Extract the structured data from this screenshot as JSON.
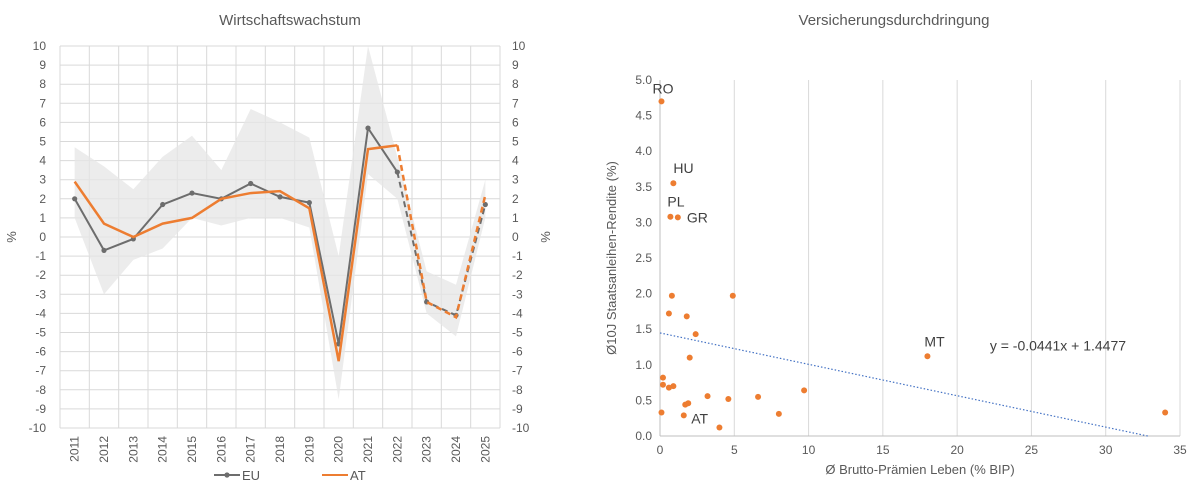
{
  "chart_data": [
    {
      "type": "line",
      "title": "Wirtschaftswachstum",
      "ylabel_left": "%",
      "ylabel_right": "%",
      "ylim": [
        -10,
        10
      ],
      "yticks": [
        10,
        9,
        8,
        7,
        6,
        5,
        4,
        3,
        2,
        1,
        0,
        -1,
        -2,
        -3,
        -4,
        -5,
        -6,
        -7,
        -8,
        -9,
        -10
      ],
      "categories": [
        "2011",
        "2012",
        "2013",
        "2014",
        "2015",
        "2016",
        "2017",
        "2018",
        "2019",
        "2020",
        "2021",
        "2022",
        "2023",
        "2024",
        "2025"
      ],
      "forecast_from": "2022",
      "band": {
        "upper": [
          4.7,
          3.7,
          2.5,
          4.2,
          5.3,
          3.5,
          6.7,
          6.0,
          5.2,
          -1.0,
          10.0,
          4.2,
          -1.8,
          -2.5,
          3.0
        ],
        "lower": [
          1.0,
          -3.0,
          -1.2,
          -0.6,
          1.0,
          0.6,
          1.0,
          1.0,
          0.5,
          -8.5,
          3.3,
          2.0,
          -4.0,
          -5.2,
          1.0
        ],
        "color": "#e6e6e6"
      },
      "series": [
        {
          "name": "EU",
          "color": "#6d6d6d",
          "marker": "circle",
          "values": [
            2.0,
            -0.7,
            -0.1,
            1.7,
            2.3,
            2.0,
            2.8,
            2.1,
            1.8,
            -5.6,
            5.7,
            3.4,
            -3.4,
            -4.1,
            1.7
          ]
        },
        {
          "name": "AT",
          "color": "#ed7d31",
          "marker": "none",
          "values": [
            2.9,
            0.7,
            0.0,
            0.7,
            1.0,
            2.0,
            2.3,
            2.4,
            1.5,
            -6.5,
            4.6,
            4.8,
            -3.4,
            -4.2,
            2.2
          ]
        }
      ],
      "legend": "bottom"
    },
    {
      "type": "scatter",
      "title": "Versicherungsdurchdringung",
      "xlabel": "Ø Brutto-Prämien Leben (% BIP)",
      "ylabel": "Ø10J Staatsanleihen-Rendite (%)",
      "xlim": [
        0,
        35
      ],
      "ylim": [
        0,
        5
      ],
      "xticks": [
        0,
        5,
        10,
        15,
        20,
        25,
        30,
        35
      ],
      "yticks": [
        "0.0",
        "0.5",
        "1.0",
        "1.5",
        "2.0",
        "2.5",
        "3.0",
        "3.5",
        "4.0",
        "4.5",
        "5.0"
      ],
      "grid_x": true,
      "grid_y": false,
      "point_color": "#ed7d31",
      "points": [
        {
          "x": 0.1,
          "y": 4.7,
          "label": "RO"
        },
        {
          "x": 0.9,
          "y": 3.55,
          "label": "HU"
        },
        {
          "x": 0.7,
          "y": 3.08,
          "label": "PL"
        },
        {
          "x": 1.2,
          "y": 3.07,
          "label": "GR"
        },
        {
          "x": 1.7,
          "y": 0.44,
          "label": "AT"
        },
        {
          "x": 18.0,
          "y": 1.12,
          "label": "MT"
        },
        {
          "x": 0.8,
          "y": 1.97,
          "label": ""
        },
        {
          "x": 4.9,
          "y": 1.97,
          "label": ""
        },
        {
          "x": 0.6,
          "y": 1.72,
          "label": ""
        },
        {
          "x": 1.8,
          "y": 1.68,
          "label": ""
        },
        {
          "x": 2.4,
          "y": 1.43,
          "label": ""
        },
        {
          "x": 2.0,
          "y": 1.1,
          "label": ""
        },
        {
          "x": 0.2,
          "y": 0.82,
          "label": ""
        },
        {
          "x": 0.2,
          "y": 0.72,
          "label": ""
        },
        {
          "x": 0.9,
          "y": 0.7,
          "label": ""
        },
        {
          "x": 0.6,
          "y": 0.68,
          "label": ""
        },
        {
          "x": 9.7,
          "y": 0.64,
          "label": ""
        },
        {
          "x": 3.2,
          "y": 0.56,
          "label": ""
        },
        {
          "x": 6.6,
          "y": 0.55,
          "label": ""
        },
        {
          "x": 4.6,
          "y": 0.52,
          "label": ""
        },
        {
          "x": 1.9,
          "y": 0.46,
          "label": ""
        },
        {
          "x": 0.1,
          "y": 0.33,
          "label": ""
        },
        {
          "x": 1.6,
          "y": 0.29,
          "label": ""
        },
        {
          "x": 8.0,
          "y": 0.31,
          "label": ""
        },
        {
          "x": 4.0,
          "y": 0.12,
          "label": ""
        },
        {
          "x": 34.0,
          "y": 0.33,
          "label": ""
        }
      ],
      "trendline": {
        "slope": -0.0441,
        "intercept": 1.4477,
        "equation": "y = -0.0441x + 1.4477",
        "color": "#4472c4"
      }
    }
  ]
}
